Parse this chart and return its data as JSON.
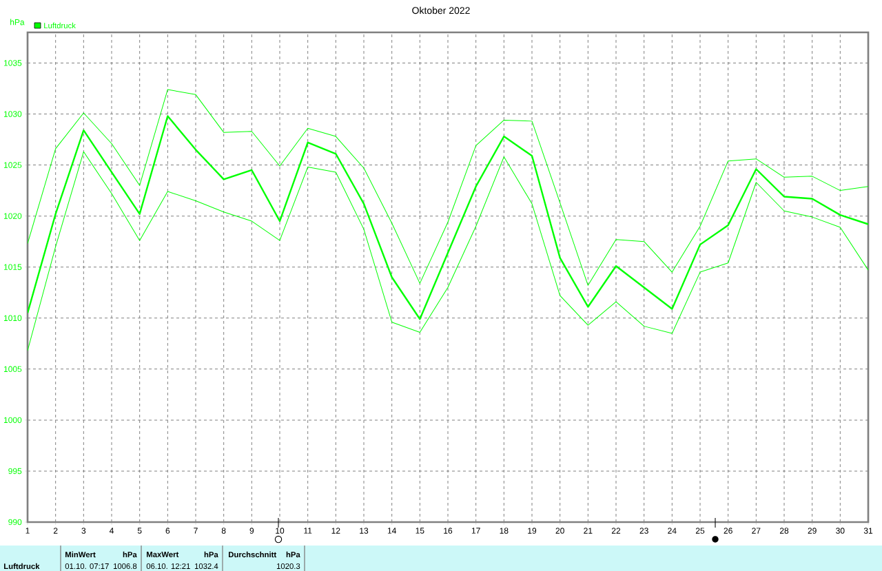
{
  "chart_data": {
    "type": "line",
    "title": "Oktober 2022",
    "ylabel": "hPa",
    "x": [
      1,
      2,
      3,
      4,
      5,
      6,
      7,
      8,
      9,
      10,
      11,
      12,
      13,
      14,
      15,
      16,
      17,
      18,
      19,
      20,
      21,
      22,
      23,
      24,
      25,
      26,
      27,
      28,
      29,
      30,
      31
    ],
    "series": [
      {
        "name": "Luftdruck",
        "color": "#00ff00",
        "values": [
          1010.5,
          1020.2,
          1028.4,
          1024.3,
          1020.2,
          1029.8,
          1026.5,
          1023.6,
          1024.5,
          1019.5,
          1027.2,
          1026.1,
          1021.2,
          1014.0,
          1009.9,
          1016.4,
          1022.9,
          1027.8,
          1025.9,
          1015.9,
          1011.1,
          1015.1,
          1013.0,
          1010.9,
          1017.2,
          1019.1,
          1024.6,
          1021.9,
          1021.7,
          1020.1,
          1019.2
        ]
      },
      {
        "color": "#00ff00",
        "values": [
          1017.3,
          1026.6,
          1030.1,
          1027.1,
          1023.0,
          1032.4,
          1031.9,
          1028.2,
          1028.3,
          1024.9,
          1028.6,
          1027.8,
          1024.7,
          1019.3,
          1013.4,
          1019.4,
          1026.9,
          1029.4,
          1029.3,
          1021.3,
          1013.2,
          1017.7,
          1017.5,
          1014.5,
          1019.0,
          1025.4,
          1025.6,
          1023.8,
          1023.9,
          1022.5,
          1022.9
        ]
      },
      {
        "color": "#00ff00",
        "values": [
          1006.8,
          1017.0,
          1026.3,
          1022.2,
          1017.6,
          1022.4,
          1021.5,
          1020.4,
          1019.5,
          1017.6,
          1024.8,
          1024.3,
          1018.7,
          1009.6,
          1008.6,
          1013.0,
          1019.0,
          1025.8,
          1021.2,
          1012.2,
          1009.3,
          1011.6,
          1009.2,
          1008.5,
          1014.5,
          1015.4,
          1023.3,
          1020.5,
          1019.9,
          1018.9,
          1014.7
        ]
      }
    ],
    "xlim": [
      1,
      31
    ],
    "xticks": [
      1,
      2,
      3,
      4,
      5,
      6,
      7,
      8,
      9,
      10,
      11,
      12,
      13,
      14,
      15,
      16,
      17,
      18,
      19,
      20,
      21,
      22,
      23,
      24,
      25,
      26,
      27,
      28,
      29,
      30,
      31
    ],
    "ylim": [
      990,
      1038
    ],
    "yticks": [
      990,
      995,
      1000,
      1005,
      1010,
      1015,
      1020,
      1025,
      1030,
      1035
    ],
    "grid": true,
    "legend": "top left",
    "annotations": [
      "Luftdruck",
      "MinWert",
      "hPa",
      "01.10. 07:17",
      "1006.8",
      "MaxWert",
      "hPa",
      "06.10. 12:21",
      "1032.4",
      "Durchschnitt",
      "hPa",
      "1020.3"
    ]
  }
}
